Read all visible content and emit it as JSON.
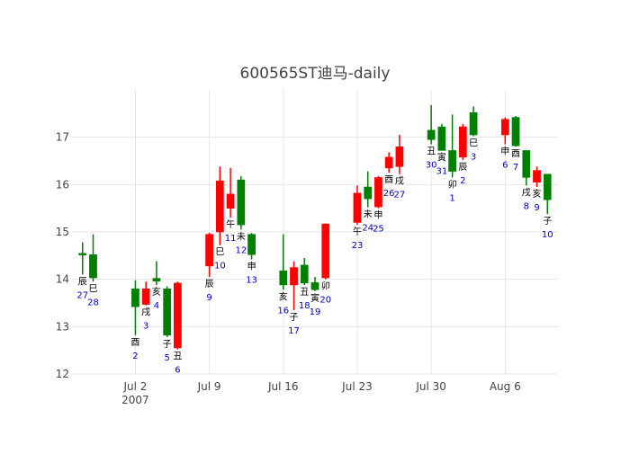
{
  "chart_data": {
    "type": "candlestick",
    "title": "600565ST迪马-daily",
    "xlabel": "",
    "ylabel": "",
    "ylim": [
      12,
      18
    ],
    "y_ticks": [
      12,
      13,
      14,
      15,
      16,
      17
    ],
    "x_ticks": [
      {
        "date": "2007-07-02",
        "label": "Jul 2",
        "sub": "2007"
      },
      {
        "date": "2007-07-09",
        "label": "Jul 9",
        "sub": ""
      },
      {
        "date": "2007-07-16",
        "label": "Jul 16",
        "sub": ""
      },
      {
        "date": "2007-07-23",
        "label": "Jul 23",
        "sub": ""
      },
      {
        "date": "2007-07-30",
        "label": "Jul 30",
        "sub": ""
      },
      {
        "date": "2007-08-06",
        "label": "Aug 6",
        "sub": ""
      }
    ],
    "xlim": [
      "2007-06-26",
      "2007-08-11"
    ],
    "grid": true,
    "up_color": "#ff0000",
    "down_color": "#008000",
    "candles": [
      {
        "date": "2007-06-27",
        "open": 14.55,
        "high": 14.78,
        "low": 14.1,
        "close": 14.52,
        "branch": "辰",
        "day": "27"
      },
      {
        "date": "2007-06-28",
        "open": 14.52,
        "high": 14.95,
        "low": 13.95,
        "close": 14.03,
        "branch": "巳",
        "day": "28"
      },
      {
        "date": "2007-07-02",
        "open": 13.8,
        "high": 13.98,
        "low": 12.82,
        "close": 13.42,
        "branch": "酉",
        "day": "2"
      },
      {
        "date": "2007-07-03",
        "open": 13.47,
        "high": 13.95,
        "low": 13.45,
        "close": 13.8,
        "branch": "戌",
        "day": "3"
      },
      {
        "date": "2007-07-04",
        "open": 14.02,
        "high": 14.38,
        "low": 13.88,
        "close": 13.96,
        "branch": "亥",
        "day": "4"
      },
      {
        "date": "2007-07-05",
        "open": 13.8,
        "high": 13.85,
        "low": 12.78,
        "close": 12.82,
        "branch": "子",
        "day": "5"
      },
      {
        "date": "2007-07-06",
        "open": 12.55,
        "high": 13.95,
        "low": 12.52,
        "close": 13.92,
        "branch": "丑",
        "day": "6"
      },
      {
        "date": "2007-07-09",
        "open": 14.28,
        "high": 14.98,
        "low": 14.05,
        "close": 14.95,
        "branch": "辰",
        "day": "9"
      },
      {
        "date": "2007-07-10",
        "open": 15.0,
        "high": 16.38,
        "low": 14.72,
        "close": 16.08,
        "branch": "巳",
        "day": "10"
      },
      {
        "date": "2007-07-11",
        "open": 15.5,
        "high": 16.35,
        "low": 15.3,
        "close": 15.8,
        "branch": "午",
        "day": "11"
      },
      {
        "date": "2007-07-12",
        "open": 16.1,
        "high": 16.18,
        "low": 15.05,
        "close": 15.15,
        "branch": "未",
        "day": "12"
      },
      {
        "date": "2007-07-13",
        "open": 14.95,
        "high": 14.98,
        "low": 14.42,
        "close": 14.52,
        "branch": "申",
        "day": "13"
      },
      {
        "date": "2007-07-16",
        "open": 14.18,
        "high": 14.95,
        "low": 13.78,
        "close": 13.88,
        "branch": "亥",
        "day": "16"
      },
      {
        "date": "2007-07-17",
        "open": 13.88,
        "high": 14.38,
        "low": 13.35,
        "close": 14.25,
        "branch": "子",
        "day": "17"
      },
      {
        "date": "2007-07-18",
        "open": 14.3,
        "high": 14.45,
        "low": 13.88,
        "close": 13.92,
        "branch": "丑",
        "day": "18"
      },
      {
        "date": "2007-07-19",
        "open": 13.93,
        "high": 14.05,
        "low": 13.75,
        "close": 13.78,
        "branch": "寅",
        "day": "19"
      },
      {
        "date": "2007-07-20",
        "open": 14.03,
        "high": 15.18,
        "low": 14.0,
        "close": 15.17,
        "branch": "卯",
        "day": "20"
      },
      {
        "date": "2007-07-23",
        "open": 15.2,
        "high": 15.98,
        "low": 15.15,
        "close": 15.82,
        "branch": "午",
        "day": "23"
      },
      {
        "date": "2007-07-24",
        "open": 15.95,
        "high": 16.28,
        "low": 15.52,
        "close": 15.7,
        "branch": "未",
        "day": "24"
      },
      {
        "date": "2007-07-25",
        "open": 15.53,
        "high": 16.18,
        "low": 15.5,
        "close": 16.15,
        "branch": "申",
        "day": "25"
      },
      {
        "date": "2007-07-26",
        "open": 16.35,
        "high": 16.68,
        "low": 16.25,
        "close": 16.58,
        "branch": "酉",
        "day": "26"
      },
      {
        "date": "2007-07-27",
        "open": 16.38,
        "high": 17.05,
        "low": 16.22,
        "close": 16.8,
        "branch": "戌",
        "day": "27"
      },
      {
        "date": "2007-07-30",
        "open": 17.15,
        "high": 17.68,
        "low": 16.85,
        "close": 16.95,
        "branch": "丑",
        "day": "30"
      },
      {
        "date": "2007-07-31",
        "open": 17.22,
        "high": 17.28,
        "low": 16.72,
        "close": 16.72,
        "branch": "寅",
        "day": "31"
      },
      {
        "date": "2007-08-01",
        "open": 16.72,
        "high": 17.48,
        "low": 16.15,
        "close": 16.28,
        "branch": "卯",
        "day": "1"
      },
      {
        "date": "2007-08-02",
        "open": 16.58,
        "high": 17.28,
        "low": 16.52,
        "close": 17.22,
        "branch": "辰",
        "day": "2"
      },
      {
        "date": "2007-08-03",
        "open": 17.52,
        "high": 17.65,
        "low": 17.02,
        "close": 17.05,
        "branch": "巳",
        "day": "3"
      },
      {
        "date": "2007-08-06",
        "open": 17.05,
        "high": 17.42,
        "low": 16.85,
        "close": 17.38,
        "branch": "申",
        "day": "6"
      },
      {
        "date": "2007-08-07",
        "open": 17.42,
        "high": 17.45,
        "low": 16.8,
        "close": 16.82,
        "branch": "酉",
        "day": "7"
      },
      {
        "date": "2007-08-08",
        "open": 16.72,
        "high": 16.72,
        "low": 15.98,
        "close": 16.15,
        "branch": "戌",
        "day": "8"
      },
      {
        "date": "2007-08-09",
        "open": 16.05,
        "high": 16.38,
        "low": 15.95,
        "close": 16.3,
        "branch": "亥",
        "day": "9"
      },
      {
        "date": "2007-08-10",
        "open": 16.22,
        "high": 16.22,
        "low": 15.38,
        "close": 15.68,
        "branch": "子",
        "day": "10"
      }
    ]
  }
}
